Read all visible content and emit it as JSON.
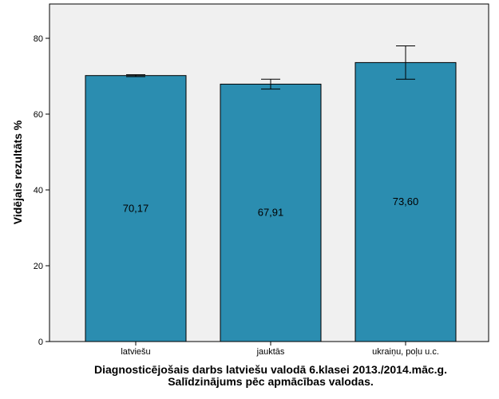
{
  "chart_data": {
    "type": "bar",
    "categories": [
      "latviešu",
      "jauktās",
      "ukraiņu, poļu u.c."
    ],
    "values": [
      70.17,
      67.91,
      73.6
    ],
    "value_labels": [
      "70,17",
      "67,91",
      "73,60"
    ],
    "error_bars": [
      {
        "low": 69.9,
        "high": 70.4
      },
      {
        "low": 66.6,
        "high": 69.2
      },
      {
        "low": 69.2,
        "high": 78.0
      }
    ],
    "ylabel": "Vidējais rezultāts %",
    "xtitle_lines": [
      "Diagnosticējošais darbs latviešu valodā 6.klasei 2013./2014.māc.g.",
      "Salīdzinājums pēc apmācības valodas."
    ],
    "ylim": [
      0,
      90
    ],
    "yticks": [
      0,
      20,
      40,
      60,
      80
    ],
    "grid": false,
    "colors": {
      "bar": "#2b8db0",
      "plot_background": "#f0f0f0",
      "axis": "#000000"
    }
  }
}
